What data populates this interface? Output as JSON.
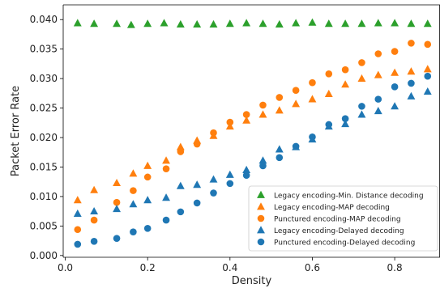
{
  "chart_data": {
    "type": "scatter",
    "xlabel": "Density",
    "ylabel": "Packet Error Rate",
    "xlim": [
      -0.005,
      0.91
    ],
    "ylim": [
      -0.0003,
      0.0425
    ],
    "grid": false,
    "legend_position": "lower-right",
    "x_ticks": [
      0.0,
      0.2,
      0.4,
      0.6,
      0.8
    ],
    "x_tick_labels": [
      "0.0",
      "0.2",
      "0.4",
      "0.6",
      "0.8"
    ],
    "y_ticks": [
      0.0,
      0.005,
      0.01,
      0.015,
      0.02,
      0.025,
      0.03,
      0.035,
      0.04
    ],
    "y_tick_labels": [
      "0.000",
      "0.005",
      "0.010",
      "0.015",
      "0.020",
      "0.025",
      "0.030",
      "0.035",
      "0.040"
    ],
    "series": [
      {
        "name": "Legacy encoding-Min. Distance decoding",
        "color": "#2ca02c",
        "marker": "triangle",
        "x": [
          0.03,
          0.07,
          0.125,
          0.16,
          0.2,
          0.24,
          0.28,
          0.32,
          0.36,
          0.4,
          0.44,
          0.48,
          0.52,
          0.56,
          0.6,
          0.64,
          0.68,
          0.72,
          0.76,
          0.8,
          0.84,
          0.88
        ],
        "y": [
          0.0394,
          0.0393,
          0.0393,
          0.0391,
          0.0393,
          0.0394,
          0.0392,
          0.0392,
          0.0392,
          0.0393,
          0.0394,
          0.0393,
          0.0392,
          0.0394,
          0.0395,
          0.0393,
          0.0393,
          0.0393,
          0.0394,
          0.0394,
          0.0393,
          0.0393
        ]
      },
      {
        "name": "Legacy encoding-MAP decoding",
        "color": "#ff7f0e",
        "marker": "triangle",
        "x": [
          0.03,
          0.07,
          0.125,
          0.165,
          0.2,
          0.245,
          0.28,
          0.32,
          0.36,
          0.4,
          0.44,
          0.48,
          0.52,
          0.56,
          0.6,
          0.64,
          0.68,
          0.72,
          0.76,
          0.8,
          0.84,
          0.88
        ],
        "y": [
          0.0094,
          0.0111,
          0.0123,
          0.0139,
          0.0152,
          0.0161,
          0.0184,
          0.0195,
          0.0203,
          0.0219,
          0.0229,
          0.0239,
          0.0246,
          0.0257,
          0.0265,
          0.0274,
          0.029,
          0.03,
          0.0306,
          0.031,
          0.0312,
          0.0316
        ]
      },
      {
        "name": "Punctured encoding-MAP decoding",
        "color": "#ff7f0e",
        "marker": "circle",
        "x": [
          0.03,
          0.07,
          0.125,
          0.165,
          0.2,
          0.245,
          0.28,
          0.32,
          0.36,
          0.4,
          0.44,
          0.48,
          0.52,
          0.56,
          0.6,
          0.64,
          0.68,
          0.72,
          0.76,
          0.8,
          0.84,
          0.88
        ],
        "y": [
          0.0044,
          0.006,
          0.009,
          0.011,
          0.0133,
          0.0147,
          0.0176,
          0.0189,
          0.0208,
          0.0226,
          0.0239,
          0.0255,
          0.0268,
          0.028,
          0.0293,
          0.0308,
          0.0315,
          0.0327,
          0.0342,
          0.0346,
          0.036,
          0.0358
        ]
      },
      {
        "name": "Legacy encoding-Delayed decoding",
        "color": "#1f77b4",
        "marker": "triangle",
        "x": [
          0.03,
          0.07,
          0.125,
          0.165,
          0.2,
          0.245,
          0.28,
          0.32,
          0.36,
          0.4,
          0.44,
          0.48,
          0.52,
          0.56,
          0.6,
          0.64,
          0.68,
          0.72,
          0.76,
          0.8,
          0.84,
          0.88
        ],
        "y": [
          0.0071,
          0.0075,
          0.0079,
          0.0087,
          0.0094,
          0.0098,
          0.0118,
          0.012,
          0.0129,
          0.0137,
          0.0145,
          0.0161,
          0.018,
          0.0184,
          0.0197,
          0.0219,
          0.0223,
          0.0239,
          0.0245,
          0.0253,
          0.027,
          0.0278
        ]
      },
      {
        "name": "Punctured encoding-Delayed decoding",
        "color": "#1f77b4",
        "marker": "circle",
        "x": [
          0.03,
          0.07,
          0.125,
          0.165,
          0.2,
          0.245,
          0.28,
          0.32,
          0.36,
          0.4,
          0.44,
          0.48,
          0.52,
          0.56,
          0.6,
          0.64,
          0.68,
          0.72,
          0.76,
          0.8,
          0.84,
          0.88
        ],
        "y": [
          0.0019,
          0.0024,
          0.0029,
          0.004,
          0.0046,
          0.006,
          0.0074,
          0.0089,
          0.0106,
          0.0122,
          0.0136,
          0.0152,
          0.0166,
          0.0185,
          0.0201,
          0.0222,
          0.0232,
          0.0253,
          0.0265,
          0.0286,
          0.0292,
          0.0304
        ]
      }
    ]
  }
}
